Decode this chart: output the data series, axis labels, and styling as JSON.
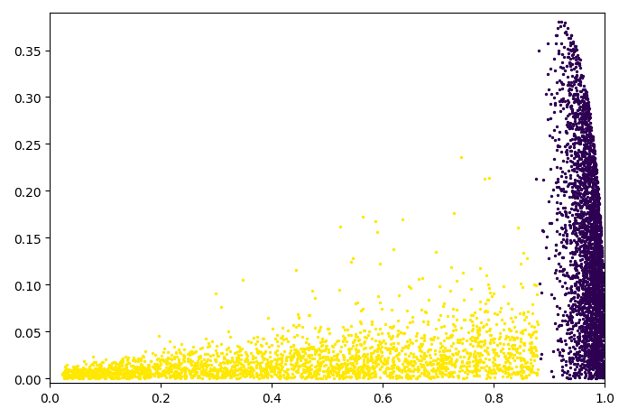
{
  "title": "",
  "xlabel": "",
  "ylabel": "",
  "xlim": [
    0.0,
    1.0
  ],
  "ylim": [
    -0.005,
    0.39
  ],
  "background_color": "#ffffff",
  "cluster1_color": "#FFE800",
  "cluster2_color": "#2D0052",
  "marker_size": 6,
  "alpha": 1.0,
  "seed": 42,
  "figsize": [
    6.96,
    4.64
  ],
  "dpi": 100
}
